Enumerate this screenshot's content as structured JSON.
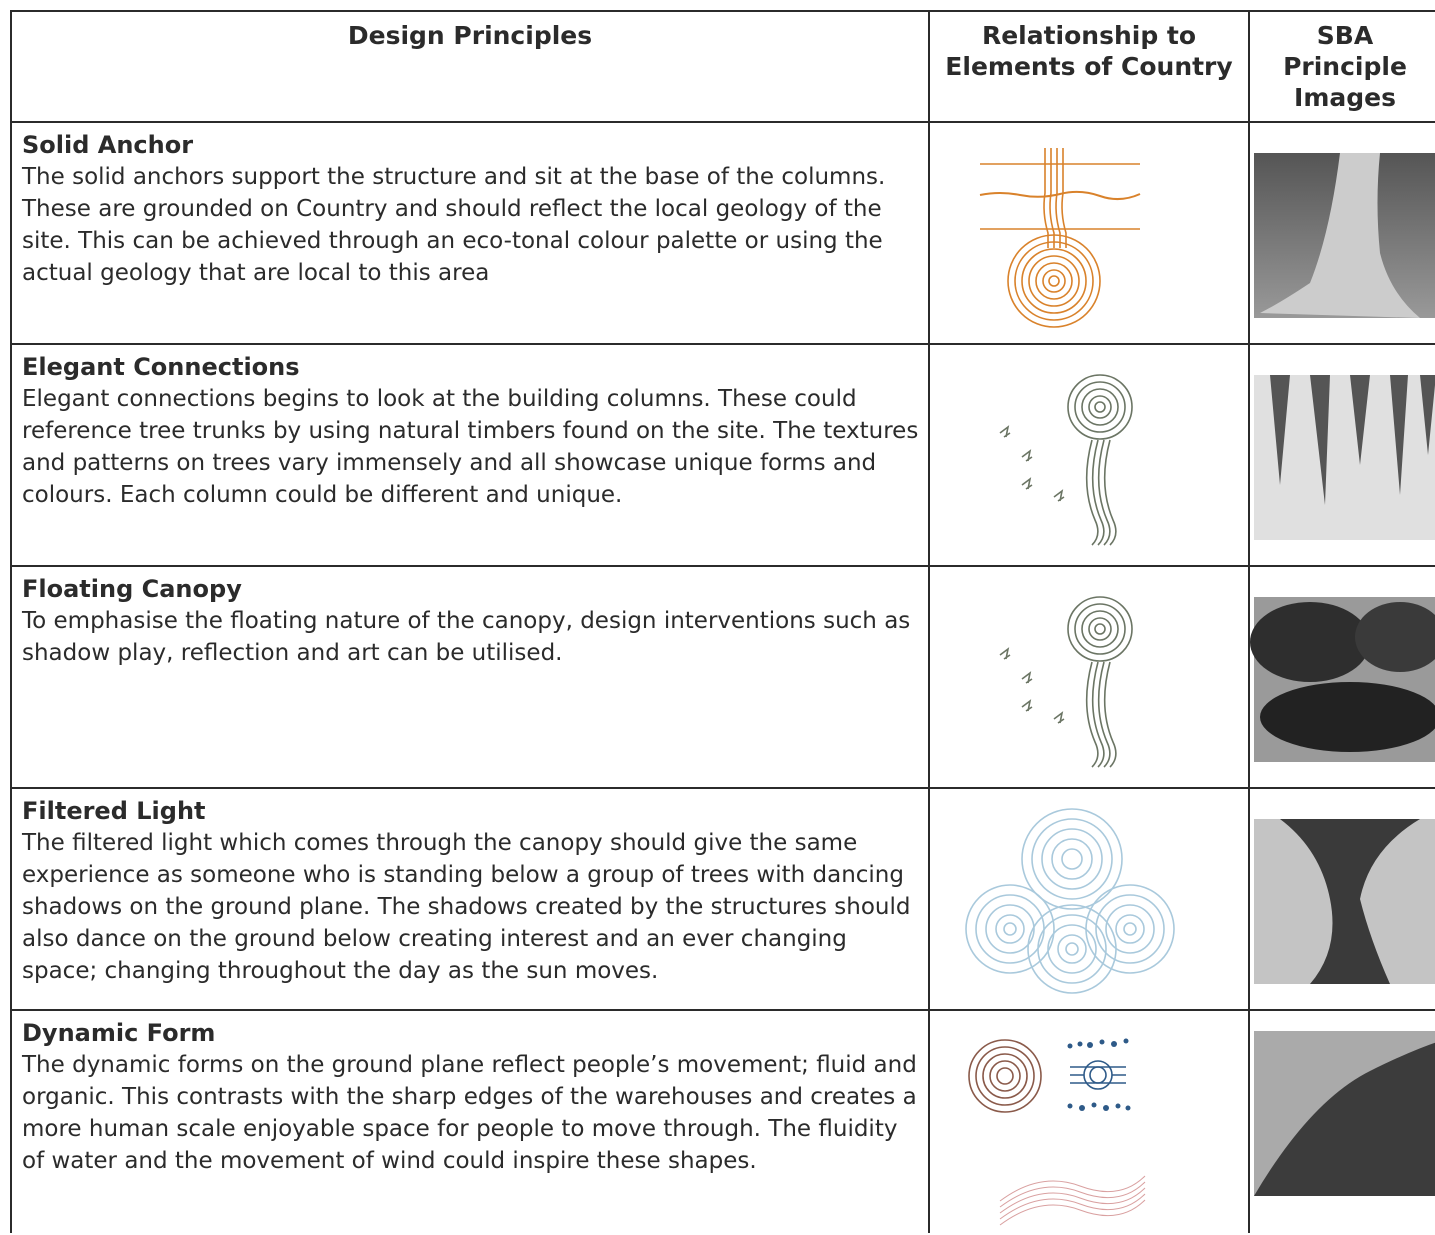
{
  "table": {
    "header": [
      "Design Principles",
      "Relationship to Elements of Country",
      "SBA Principle Images"
    ],
    "rows": [
      {
        "title": "Solid Anchor",
        "description": "The solid anchors support the structure and sit at the base of the columns. These are grounded on Country and should reflect the local geology of the site. This can be achieved through an eco-tonal colour palette or using the actual geology that are local to this area"
      },
      {
        "title": "Elegant Connections",
        "description": "Elegant connections begins to look at the building columns. These could reference tree trunks by using natural timbers found on the site. The textures and patterns on trees vary immensely and all showcase unique forms and colours. Each column could be different and unique."
      },
      {
        "title": "Floating Canopy",
        "description": "To emphasise the floating nature of the canopy, design interventions such as shadow play, reflection and art can be utilised."
      },
      {
        "title": "Filtered Light",
        "description": "The filtered light which comes through the canopy should give the same experience as someone who is standing below a group of trees with dancing shadows on the ground plane. The shadows created by the structures should also dance on the ground below creating interest and an ever changing space; changing throughout the day as the sun moves."
      },
      {
        "title": "Dynamic Form",
        "description": "The dynamic forms on the ground plane reflect people’s movement; fluid and organic. This contrasts with the sharp edges of the warehouses and creates a more human scale enjoyable space for people to move through. The fluidity of water and the movement of wind could inspire these shapes."
      }
    ]
  }
}
